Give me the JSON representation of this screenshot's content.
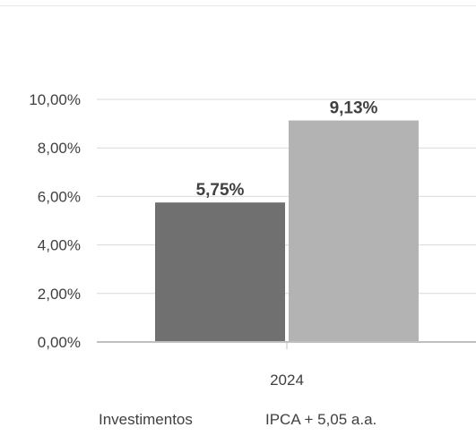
{
  "chart_data": {
    "type": "bar",
    "categories": [
      "2024"
    ],
    "series": [
      {
        "name": "Investimentos",
        "values": [
          5.75
        ],
        "label": "5,75%",
        "color": "#707070"
      },
      {
        "name": "IPCA + 5,05 a.a.",
        "values": [
          9.13
        ],
        "label": "9,13%",
        "color": "#b3b3b3"
      }
    ],
    "ylim": [
      0,
      10
    ],
    "yticks": [
      {
        "value": 0,
        "label": "0,00%"
      },
      {
        "value": 2,
        "label": "2,00%"
      },
      {
        "value": 4,
        "label": "4,00%"
      },
      {
        "value": 6,
        "label": "6,00%"
      },
      {
        "value": 8,
        "label": "8,00%"
      },
      {
        "value": 10,
        "label": "10,00%"
      }
    ],
    "title": "",
    "xlabel": "",
    "ylabel": "",
    "grid": true,
    "legend_position": "bottom",
    "colors": {
      "grid": "#d9d9d9",
      "axis": "#bfbfbf",
      "text": "#404040",
      "value_label": "#404040"
    }
  }
}
